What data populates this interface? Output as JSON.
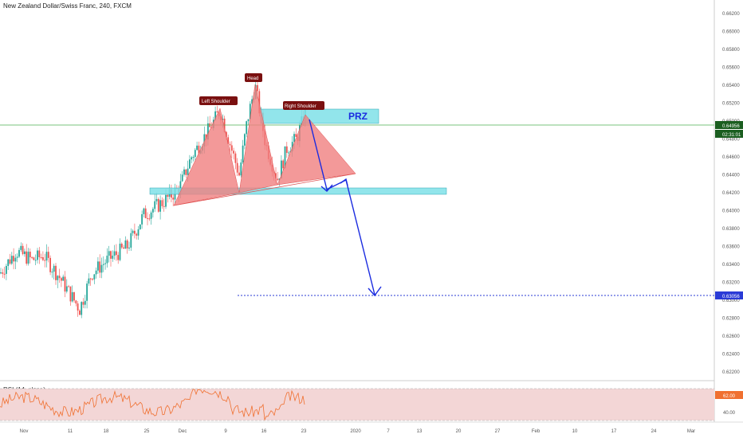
{
  "title": "New Zealand Dollar/Swiss Franc, 240, FXCM",
  "price_axis": [
    "0.66200",
    "0.66000",
    "0.65800",
    "0.65600",
    "0.65400",
    "0.65200",
    "0.65000",
    "0.64800",
    "0.64600",
    "0.64400",
    "0.64200",
    "0.64000",
    "0.63800",
    "0.63600",
    "0.63400",
    "0.63200",
    "0.63000",
    "0.62800",
    "0.62600",
    "0.62400",
    "0.62200"
  ],
  "tags": {
    "last_price": "0.64956",
    "countdown": "02:31:01",
    "target": "0.63056",
    "rsi_level": "62.00",
    "rsi_axis_lower": "40.00"
  },
  "annotations": {
    "left_shoulder": "Left Shoulder",
    "head": "Head",
    "right_shoulder": "Right Shoulder",
    "prz": "PRZ"
  },
  "rsi_title": "RSI (14, close)",
  "time_axis": [
    "Nov",
    "11",
    "18",
    "25",
    "Dec",
    "9",
    "16",
    "23",
    "2020",
    "7",
    "13",
    "20",
    "27",
    "Feb",
    "10",
    "17",
    "24",
    "Mar"
  ],
  "colors": {
    "bull": "#26a69a",
    "bear": "#ef5350",
    "pattern": "#f08080",
    "zone": "#7fe0e8",
    "arrow": "#1a2be0",
    "price_line": "#4caf50",
    "tag_dark": "#1b5e20",
    "target_tag": "#2a3bd6",
    "rsi_band": "#f3d6d6",
    "rsi_line": "#f07030"
  }
}
